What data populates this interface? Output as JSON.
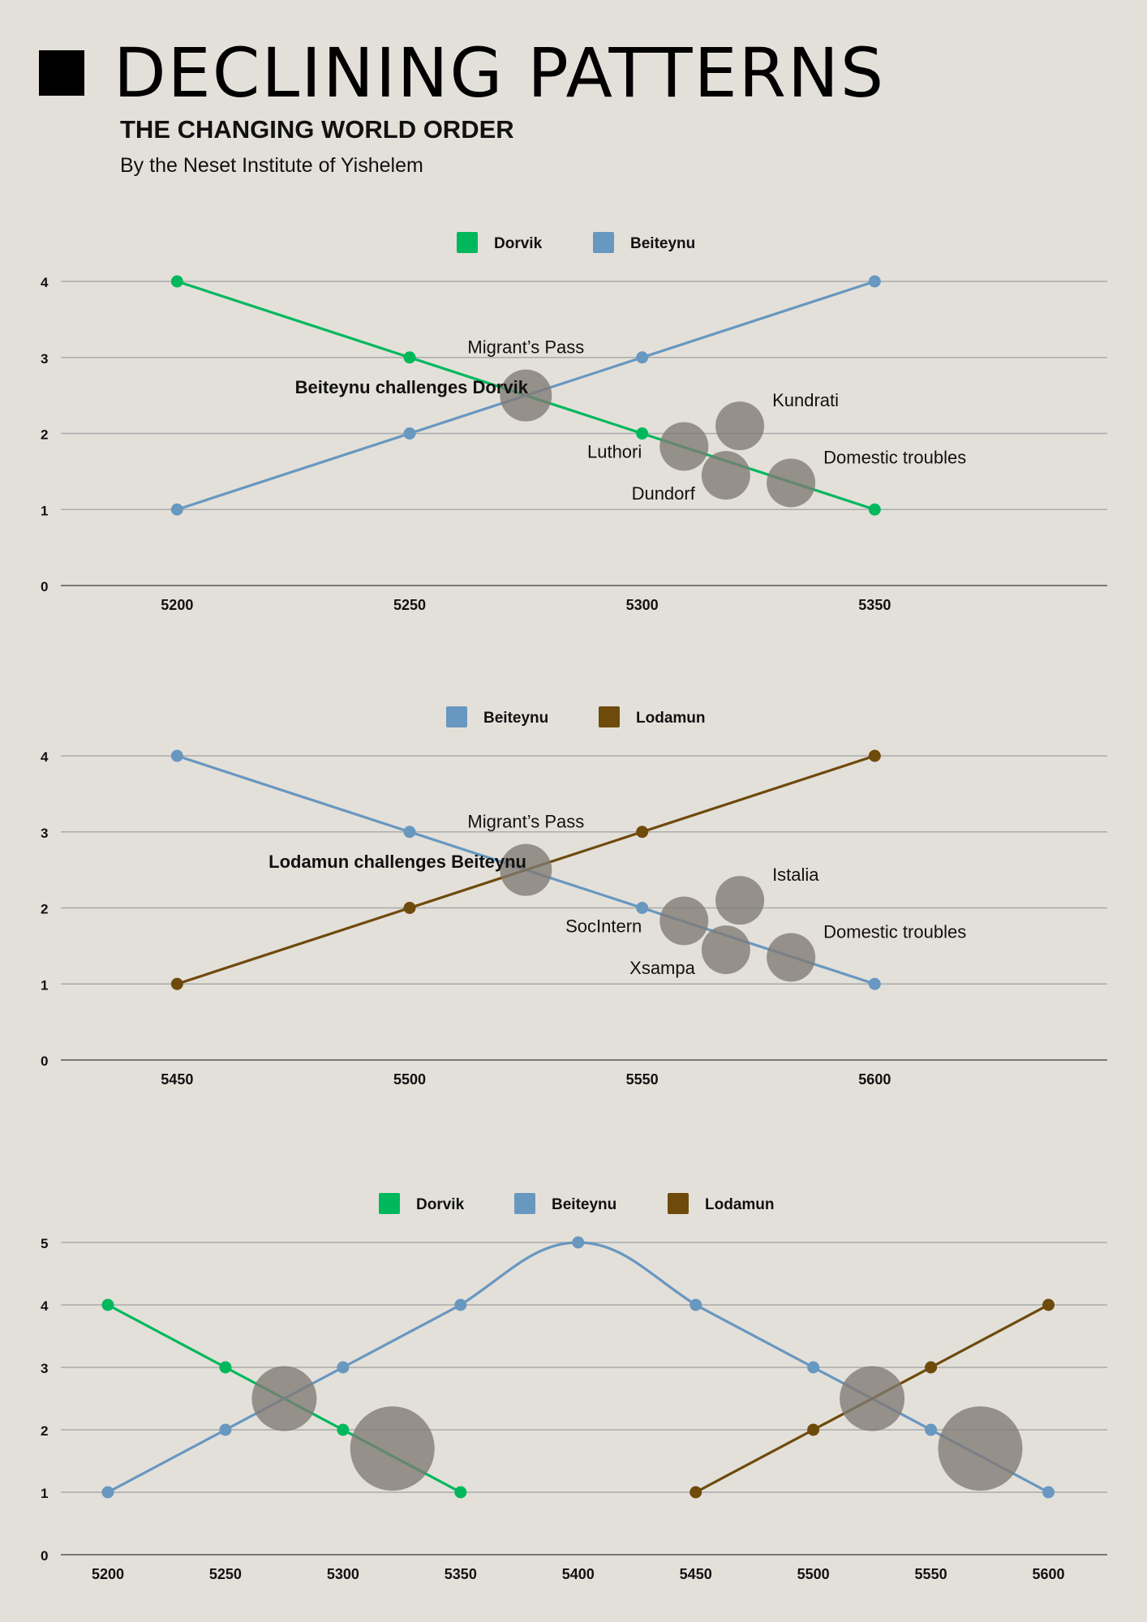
{
  "header": {
    "title": "DECLINING PATTERNS",
    "subtitle": "THE CHANGING WORLD ORDER",
    "byline": "By the Neset Institute of Yishelem"
  },
  "colors": {
    "background": "#e3e0da",
    "dorvik": "#00b85c",
    "beiteynu": "#6897c0",
    "lodamun": "#6e4a0b",
    "bubble": "#7f7a73"
  },
  "chart_data": [
    {
      "type": "line",
      "legend_placement": "top-center",
      "grid": true,
      "x": [
        5200,
        5250,
        5300,
        5350
      ],
      "xlim": [
        5175,
        5400
      ],
      "ylim": [
        0,
        4
      ],
      "yticks": [
        0,
        1,
        2,
        3,
        4
      ],
      "series": [
        {
          "name": "Dorvik",
          "color": "#00b85c",
          "values": [
            4,
            3,
            2,
            1
          ]
        },
        {
          "name": "Beiteynu",
          "color": "#6897c0",
          "values": [
            1,
            2,
            3,
            4
          ]
        }
      ],
      "bubbles": [
        {
          "x": 5275,
          "y": 2.5,
          "label": "Migrant’s Pass",
          "label_pos": "above"
        },
        {
          "x": 5309,
          "y": 1.83,
          "label": "Luthori",
          "label_pos": "left"
        },
        {
          "x": 5321,
          "y": 2.1,
          "label": "Kundrati",
          "label_pos": "upper-right"
        },
        {
          "x": 5318,
          "y": 1.45,
          "label": "Dundorf",
          "label_pos": "lower-left"
        },
        {
          "x": 5332,
          "y": 1.35,
          "label": "Domestic troubles",
          "label_pos": "upper-right"
        }
      ],
      "annotation": "Beiteynu challenges Dorvik"
    },
    {
      "type": "line",
      "legend_placement": "top-center",
      "grid": true,
      "x": [
        5450,
        5500,
        5550,
        5600
      ],
      "xlim": [
        5425,
        5650
      ],
      "ylim": [
        0,
        4
      ],
      "yticks": [
        0,
        1,
        2,
        3,
        4
      ],
      "series": [
        {
          "name": "Beiteynu",
          "color": "#6897c0",
          "values": [
            4,
            3,
            2,
            1
          ]
        },
        {
          "name": "Lodamun",
          "color": "#6e4a0b",
          "values": [
            1,
            2,
            3,
            4
          ]
        }
      ],
      "bubbles": [
        {
          "x": 5525,
          "y": 2.5,
          "label": "Migrant’s Pass",
          "label_pos": "above"
        },
        {
          "x": 5559,
          "y": 1.83,
          "label": "SocIntern",
          "label_pos": "left"
        },
        {
          "x": 5571,
          "y": 2.1,
          "label": "Istalia",
          "label_pos": "upper-right"
        },
        {
          "x": 5568,
          "y": 1.45,
          "label": "Xsampa",
          "label_pos": "lower-left"
        },
        {
          "x": 5582,
          "y": 1.35,
          "label": "Domestic troubles",
          "label_pos": "upper-right"
        }
      ],
      "annotation": "Lodamun challenges Beiteynu"
    },
    {
      "type": "line",
      "legend_placement": "top-center",
      "grid": true,
      "x": [
        5200,
        5250,
        5300,
        5350,
        5400,
        5450,
        5500,
        5550,
        5600
      ],
      "xlim": [
        5180,
        5625
      ],
      "ylim": [
        0,
        5
      ],
      "yticks": [
        0,
        1,
        2,
        3,
        4,
        5
      ],
      "series": [
        {
          "name": "Dorvik",
          "color": "#00b85c",
          "x": [
            5200,
            5250,
            5300,
            5350
          ],
          "values": [
            4,
            3,
            2,
            1
          ]
        },
        {
          "name": "Beiteynu",
          "color": "#6897c0",
          "x": [
            5200,
            5250,
            5300,
            5350,
            5400,
            5450,
            5500,
            5550,
            5600
          ],
          "values": [
            1,
            2,
            3,
            4,
            5,
            4,
            3,
            2,
            1
          ]
        },
        {
          "name": "Lodamun",
          "color": "#6e4a0b",
          "x": [
            5450,
            5500,
            5550,
            5600
          ],
          "values": [
            1,
            2,
            3,
            4
          ]
        }
      ],
      "bubbles": [
        {
          "x": 5275,
          "y": 2.5,
          "size": "small"
        },
        {
          "x": 5321,
          "y": 1.7,
          "size": "large"
        },
        {
          "x": 5525,
          "y": 2.5,
          "size": "small"
        },
        {
          "x": 5571,
          "y": 1.7,
          "size": "large"
        }
      ]
    }
  ]
}
